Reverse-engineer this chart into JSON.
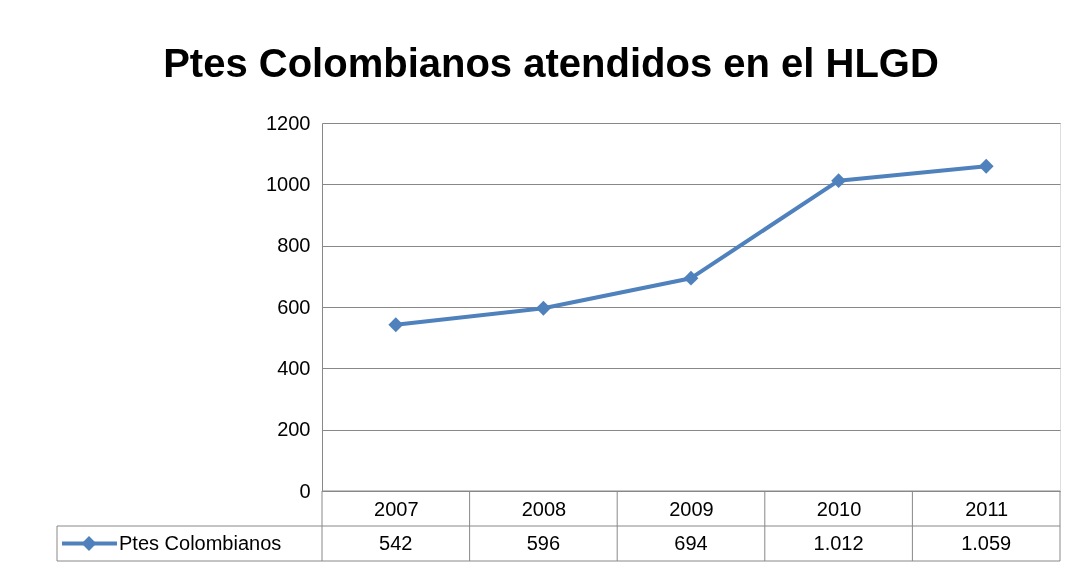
{
  "chart_data": {
    "type": "line",
    "title": "Ptes Colombianos atendidos en el HLGD",
    "categories": [
      "2007",
      "2008",
      "2009",
      "2010",
      "2011"
    ],
    "series": [
      {
        "name": "Ptes Colombianos",
        "color": "#4f81bd",
        "values": [
          542,
          596,
          694,
          1012,
          1059
        ],
        "value_labels": [
          "542",
          "596",
          "694",
          "1.012",
          "1.059"
        ]
      }
    ],
    "ylim": [
      0,
      1200
    ],
    "yticks": [
      0,
      200,
      400,
      600,
      800,
      1000,
      1200
    ],
    "grid": "y",
    "marker": "diamond",
    "legend": "bottom left"
  }
}
